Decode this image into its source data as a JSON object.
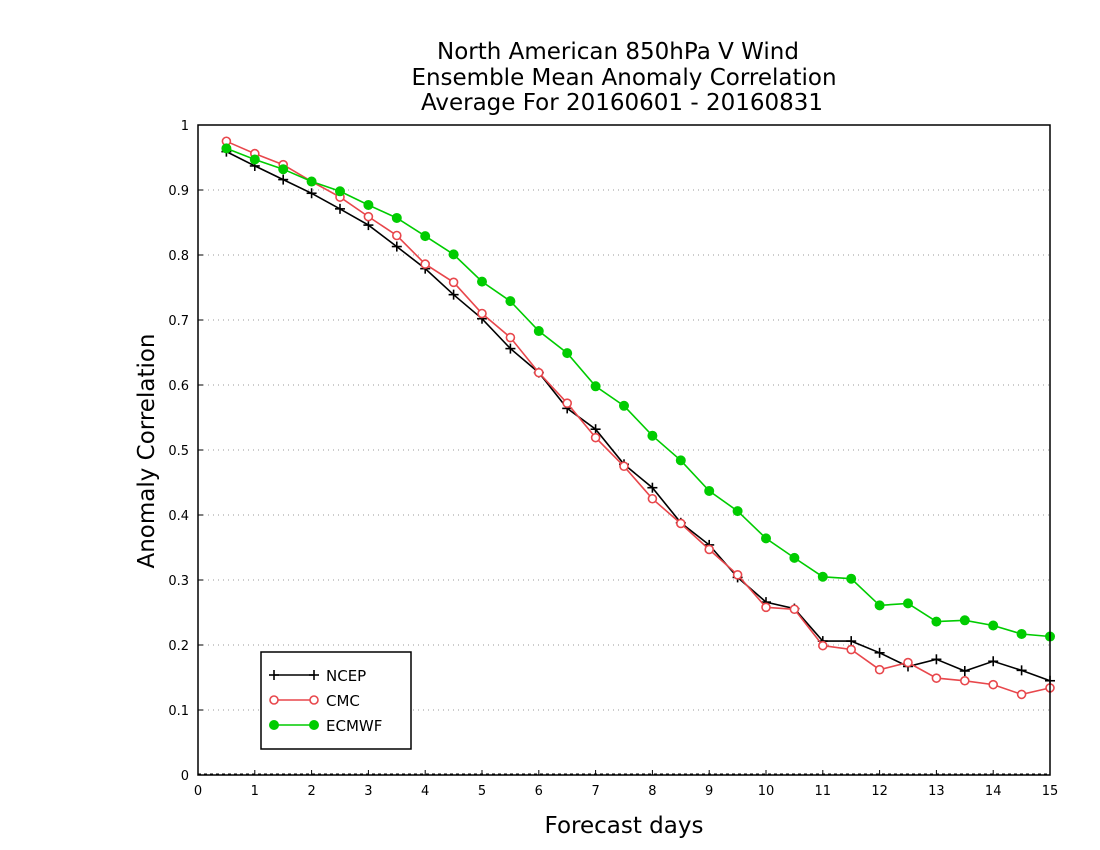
{
  "chart_data": {
    "type": "line",
    "title_lines": [
      "North American 850hPa V Wind",
      "Ensemble Mean Anomaly Correlation",
      "Average For 20160601 - 20160831"
    ],
    "xlabel": "Forecast days",
    "ylabel": "Anomaly Correlation",
    "xlim": [
      0,
      15
    ],
    "ylim": [
      0,
      1
    ],
    "x_ticks": [
      0,
      1,
      2,
      3,
      4,
      5,
      6,
      7,
      8,
      9,
      10,
      11,
      12,
      13,
      14,
      15
    ],
    "y_ticks": [
      0,
      0.1,
      0.2,
      0.3,
      0.4,
      0.5,
      0.6,
      0.7,
      0.8,
      0.9,
      1
    ],
    "x_tick_labels": [
      "0",
      "1",
      "2",
      "3",
      "4",
      "5",
      "6",
      "7",
      "8",
      "9",
      "10",
      "11",
      "12",
      "13",
      "14",
      "15"
    ],
    "y_tick_labels": [
      "0",
      "0.1",
      "0.2",
      "0.3",
      "0.4",
      "0.5",
      "0.6",
      "0.7",
      "0.8",
      "0.9",
      "1"
    ],
    "grid": "horizontal-dotted",
    "legend_position": "bottom-left",
    "x": [
      0.5,
      1,
      1.5,
      2,
      2.5,
      3,
      3.5,
      4,
      4.5,
      5,
      5.5,
      6,
      6.5,
      7,
      7.5,
      8,
      8.5,
      9,
      9.5,
      10,
      10.5,
      11,
      11.5,
      12,
      12.5,
      13,
      13.5,
      14,
      14.5,
      15
    ],
    "series": [
      {
        "name": "NCEP",
        "color": "#000000",
        "marker": "plus",
        "values": [
          0.959,
          0.937,
          0.916,
          0.895,
          0.871,
          0.846,
          0.813,
          0.779,
          0.739,
          0.702,
          0.656,
          0.619,
          0.564,
          0.532,
          0.478,
          0.442,
          0.388,
          0.354,
          0.304,
          0.266,
          0.256,
          0.206,
          0.206,
          0.188,
          0.167,
          0.178,
          0.16,
          0.175,
          0.161,
          0.145
        ]
      },
      {
        "name": "CMC",
        "color": "#e8474c",
        "marker": "open-circle",
        "values": [
          0.975,
          0.956,
          0.939,
          0.913,
          0.889,
          0.859,
          0.83,
          0.786,
          0.758,
          0.71,
          0.673,
          0.619,
          0.572,
          0.519,
          0.475,
          0.425,
          0.387,
          0.347,
          0.308,
          0.258,
          0.255,
          0.199,
          0.193,
          0.162,
          0.173,
          0.149,
          0.145,
          0.139,
          0.124,
          0.134
        ]
      },
      {
        "name": "ECMWF",
        "color": "#00cc00",
        "marker": "filled-circle",
        "values": [
          0.964,
          0.947,
          0.932,
          0.913,
          0.898,
          0.877,
          0.857,
          0.829,
          0.801,
          0.759,
          0.729,
          0.683,
          0.649,
          0.598,
          0.568,
          0.522,
          0.484,
          0.437,
          0.406,
          0.364,
          0.334,
          0.305,
          0.302,
          0.261,
          0.264,
          0.236,
          0.238,
          0.23,
          0.217,
          0.213
        ]
      }
    ]
  }
}
